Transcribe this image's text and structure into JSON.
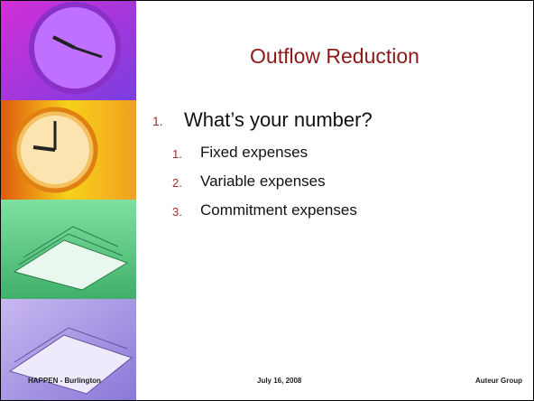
{
  "slide": {
    "title": "Outflow Reduction",
    "list": {
      "number": "1.",
      "text": "What’s your number?",
      "items": [
        {
          "number": "1.",
          "text": "Fixed expenses"
        },
        {
          "number": "2.",
          "text": "Variable expenses"
        },
        {
          "number": "3.",
          "text": "Commitment expenses"
        }
      ]
    },
    "footer": {
      "left": "HAPPEN - Burlington",
      "center": "July 16, 2008",
      "right": "Auteur Group"
    }
  }
}
